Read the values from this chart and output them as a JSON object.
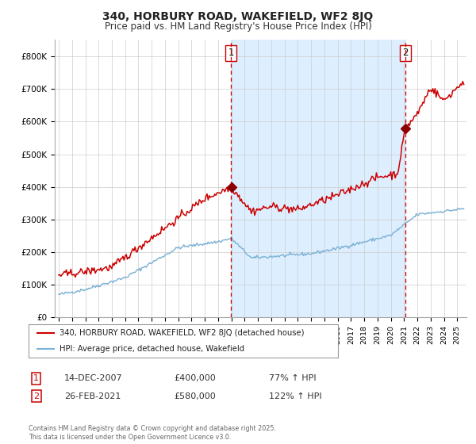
{
  "title1": "340, HORBURY ROAD, WAKEFIELD, WF2 8JQ",
  "title2": "Price paid vs. HM Land Registry's House Price Index (HPI)",
  "background_color": "#ffffff",
  "shaded_region_color": "#ddeeff",
  "red_line_color": "#cc0000",
  "blue_line_color": "#7ab0d4",
  "marker_color": "#8B0000",
  "sale1_date_num": 2007.96,
  "sale1_price": 400000,
  "sale1_label": "1",
  "sale1_info": "14-DEC-2007",
  "sale1_pct": "77% ↑ HPI",
  "sale2_date_num": 2021.12,
  "sale2_price": 580000,
  "sale2_label": "2",
  "sale2_info": "26-FEB-2021",
  "sale2_pct": "122% ↑ HPI",
  "legend_red": "340, HORBURY ROAD, WAKEFIELD, WF2 8JQ (detached house)",
  "legend_blue": "HPI: Average price, detached house, Wakefield",
  "footnote": "Contains HM Land Registry data © Crown copyright and database right 2025.\nThis data is licensed under the Open Government Licence v3.0.",
  "ylim": [
    0,
    850000
  ],
  "yticks": [
    0,
    100000,
    200000,
    300000,
    400000,
    500000,
    600000,
    700000,
    800000
  ],
  "ytick_labels": [
    "£0",
    "£100K",
    "£200K",
    "£300K",
    "£400K",
    "£500K",
    "£600K",
    "£700K",
    "£800K"
  ],
  "xmin": 1994.7,
  "xmax": 2025.7
}
